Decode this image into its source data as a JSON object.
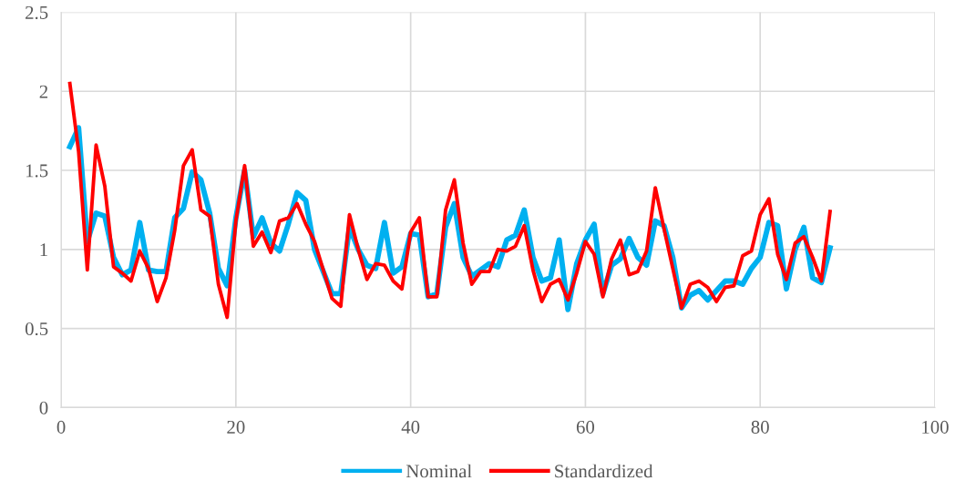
{
  "chart_data": {
    "type": "line",
    "x": [
      1,
      2,
      3,
      4,
      5,
      6,
      7,
      8,
      9,
      10,
      11,
      12,
      13,
      14,
      15,
      16,
      17,
      18,
      19,
      20,
      21,
      22,
      23,
      24,
      25,
      26,
      27,
      28,
      29,
      30,
      31,
      32,
      33,
      34,
      35,
      36,
      37,
      38,
      39,
      40,
      41,
      42,
      43,
      44,
      45,
      46,
      47,
      48,
      49,
      50,
      51,
      52,
      53,
      54,
      55,
      56,
      57,
      58,
      59,
      60,
      61,
      62,
      63,
      64,
      65,
      66,
      67,
      68,
      69,
      70,
      71,
      72,
      73,
      74,
      75,
      76,
      77,
      78,
      79,
      80,
      81,
      82,
      83,
      84,
      85,
      86,
      87,
      88
    ],
    "series": [
      {
        "name": "Nominal",
        "color": "#00b0f0",
        "values": [
          1.65,
          1.77,
          1.05,
          1.23,
          1.21,
          0.95,
          0.84,
          0.87,
          1.17,
          0.87,
          0.86,
          0.86,
          1.2,
          1.26,
          1.49,
          1.44,
          1.23,
          0.88,
          0.77,
          1.2,
          1.5,
          1.08,
          1.2,
          1.04,
          0.99,
          1.16,
          1.36,
          1.31,
          1.0,
          0.86,
          0.72,
          0.72,
          1.14,
          1.0,
          0.9,
          0.88,
          1.17,
          0.85,
          0.89,
          1.1,
          1.09,
          0.7,
          0.72,
          1.14,
          1.29,
          0.95,
          0.83,
          0.87,
          0.91,
          0.89,
          1.06,
          1.09,
          1.25,
          0.95,
          0.8,
          0.82,
          1.06,
          0.62,
          0.91,
          1.06,
          1.16,
          0.72,
          0.9,
          0.94,
          1.07,
          0.95,
          0.9,
          1.18,
          1.15,
          0.95,
          0.63,
          0.71,
          0.74,
          0.68,
          0.74,
          0.8,
          0.8,
          0.78,
          0.88,
          0.95,
          1.17,
          1.15,
          0.75,
          1.0,
          1.14,
          0.82,
          0.79,
          1.01
        ]
      },
      {
        "name": "Standardized",
        "color": "#ff0000",
        "values": [
          2.05,
          1.62,
          0.87,
          1.66,
          1.4,
          0.89,
          0.85,
          0.8,
          0.99,
          0.88,
          0.67,
          0.82,
          1.12,
          1.53,
          1.63,
          1.25,
          1.21,
          0.78,
          0.57,
          1.18,
          1.53,
          1.02,
          1.11,
          0.98,
          1.18,
          1.2,
          1.29,
          1.16,
          1.05,
          0.87,
          0.69,
          0.64,
          1.22,
          1.0,
          0.81,
          0.91,
          0.9,
          0.8,
          0.75,
          1.11,
          1.2,
          0.7,
          0.7,
          1.25,
          1.44,
          1.04,
          0.78,
          0.86,
          0.86,
          1.0,
          0.99,
          1.02,
          1.15,
          0.87,
          0.67,
          0.78,
          0.81,
          0.68,
          0.85,
          1.05,
          0.97,
          0.7,
          0.94,
          1.06,
          0.84,
          0.86,
          0.99,
          1.39,
          1.13,
          0.88,
          0.63,
          0.78,
          0.8,
          0.76,
          0.67,
          0.76,
          0.77,
          0.96,
          0.99,
          1.22,
          1.32,
          0.97,
          0.81,
          1.04,
          1.08,
          0.95,
          0.8,
          1.24
        ]
      }
    ],
    "xlim": [
      0,
      100
    ],
    "xticks": [
      0,
      20,
      40,
      60,
      80,
      100
    ],
    "ylim": [
      0,
      2.5
    ],
    "yticks": [
      0,
      0.5,
      1,
      1.5,
      2,
      2.5
    ],
    "grid": true,
    "legend": "bottom",
    "marker": "none",
    "line_style": "solid"
  }
}
